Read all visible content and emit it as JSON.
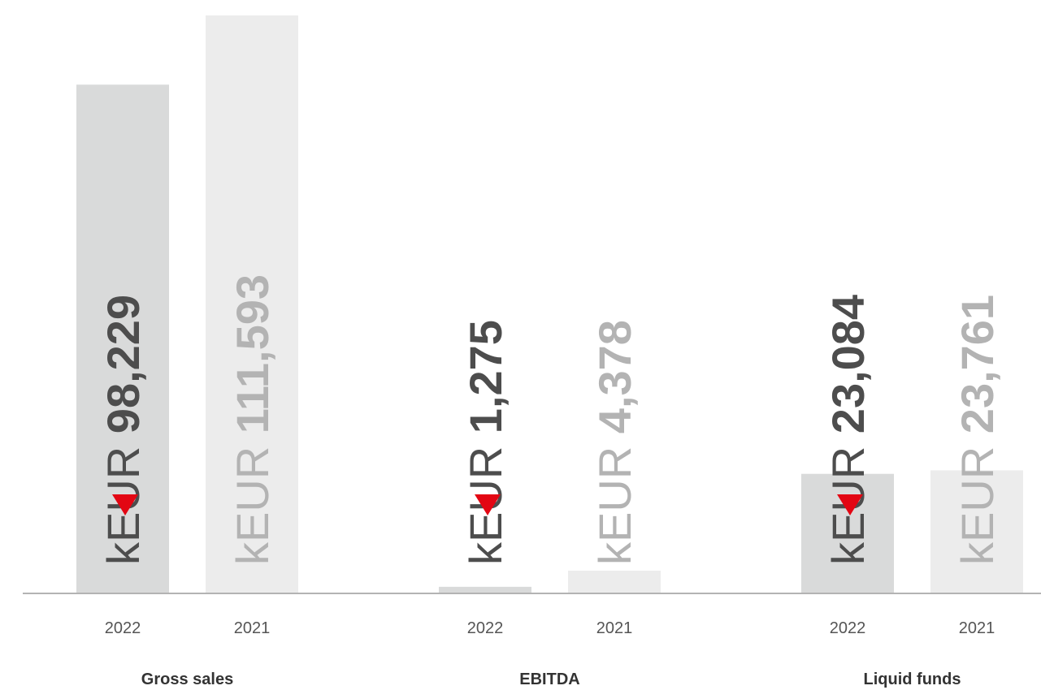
{
  "chart_data": {
    "type": "bar",
    "unit": "kEUR",
    "groups": [
      {
        "label": "Gross sales",
        "bars": [
          {
            "year": "2022",
            "value": 98229,
            "value_label": "98,229",
            "decrease": true
          },
          {
            "year": "2021",
            "value": 111593,
            "value_label": "111,593",
            "decrease": false
          }
        ]
      },
      {
        "label": "EBITDA",
        "bars": [
          {
            "year": "2022",
            "value": 1275,
            "value_label": "1,275",
            "decrease": true
          },
          {
            "year": "2021",
            "value": 4378,
            "value_label": "4,378",
            "decrease": false
          }
        ]
      },
      {
        "label": "Liquid funds",
        "bars": [
          {
            "year": "2022",
            "value": 23084,
            "value_label": "23,084",
            "decrease": true
          },
          {
            "year": "2021",
            "value": 23761,
            "value_label": "23,761",
            "decrease": false
          }
        ]
      }
    ],
    "colors": {
      "bar_2022": "#d9dada",
      "bar_2021": "#ececec",
      "text_2022": "#4d4d4d",
      "text_2021": "#b3b3b3",
      "decrease_marker": "#e30613",
      "axis": "#b3b3b3"
    },
    "ylim": [
      0,
      111593
    ],
    "grid": false,
    "legend": "none"
  }
}
